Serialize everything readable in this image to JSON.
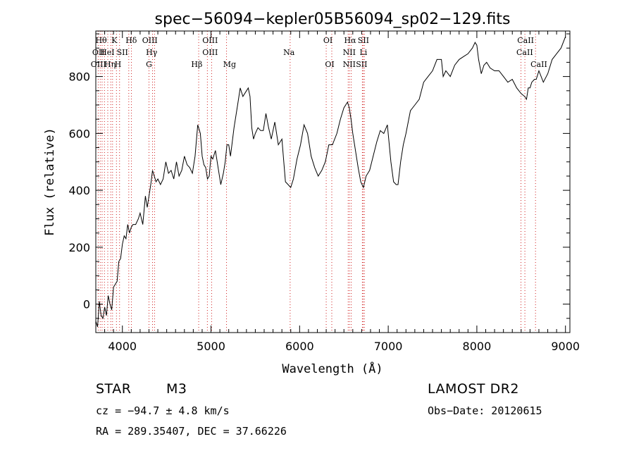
{
  "chart_data": {
    "type": "line",
    "title": "spec−56094−kepler05B56094_sp02−129.fits",
    "xlabel": "Wavelength (Å)",
    "ylabel": "Flux (relative)",
    "xlim": [
      3700,
      9050
    ],
    "ylim": [
      -100,
      960
    ],
    "xticks": [
      4000,
      5000,
      6000,
      7000,
      8000,
      9000
    ],
    "yticks": [
      0,
      200,
      400,
      600,
      800
    ],
    "series": [
      {
        "x": [
          3700,
          3720,
          3740,
          3760,
          3780,
          3800,
          3820,
          3840,
          3860,
          3880,
          3900,
          3920,
          3940,
          3960,
          3980,
          4000,
          4020,
          4040,
          4060,
          4080,
          4100,
          4120,
          4150,
          4180,
          4200,
          4230,
          4260,
          4280,
          4300,
          4320,
          4340,
          4360,
          4380,
          4400,
          4430,
          4460,
          4490,
          4520,
          4550,
          4580,
          4610,
          4640,
          4670,
          4700,
          4730,
          4760,
          4790,
          4820,
          4850,
          4880,
          4900,
          4920,
          4940,
          4960,
          4980,
          5000,
          5020,
          5050,
          5080,
          5110,
          5140,
          5160,
          5180,
          5200,
          5220,
          5260,
          5300,
          5330,
          5360,
          5400,
          5420,
          5440,
          5460,
          5480,
          5500,
          5530,
          5560,
          5590,
          5620,
          5650,
          5680,
          5720,
          5760,
          5800,
          5840,
          5870,
          5900,
          5930,
          5970,
          6010,
          6050,
          6090,
          6130,
          6170,
          6210,
          6250,
          6290,
          6330,
          6370,
          6420,
          6460,
          6500,
          6540,
          6560,
          6580,
          6600,
          6630,
          6660,
          6690,
          6720,
          6750,
          6790,
          6830,
          6870,
          6910,
          6950,
          6990,
          7030,
          7060,
          7090,
          7110,
          7140,
          7170,
          7200,
          7250,
          7300,
          7350,
          7400,
          7450,
          7500,
          7550,
          7600,
          7620,
          7650,
          7700,
          7750,
          7800,
          7850,
          7900,
          7950,
          7980,
          8000,
          8020,
          8050,
          8080,
          8110,
          8150,
          8200,
          8250,
          8300,
          8350,
          8400,
          8450,
          8500,
          8540,
          8560,
          8580,
          8600,
          8620,
          8650,
          8670,
          8700,
          8750,
          8800,
          8850,
          8900,
          8950,
          9000
        ],
        "values": [
          -60,
          -80,
          10,
          -40,
          -50,
          -10,
          -40,
          30,
          0,
          -20,
          60,
          70,
          80,
          150,
          160,
          210,
          240,
          230,
          280,
          250,
          270,
          280,
          280,
          300,
          320,
          280,
          380,
          340,
          380,
          420,
          470,
          450,
          430,
          440,
          420,
          440,
          500,
          460,
          470,
          440,
          500,
          450,
          470,
          520,
          490,
          480,
          460,
          520,
          630,
          600,
          520,
          490,
          480,
          440,
          450,
          520,
          510,
          540,
          480,
          420,
          460,
          500,
          560,
          560,
          520,
          620,
          700,
          760,
          730,
          750,
          760,
          730,
          620,
          580,
          600,
          620,
          610,
          610,
          670,
          620,
          580,
          640,
          560,
          580,
          430,
          420,
          410,
          440,
          510,
          560,
          630,
          600,
          520,
          480,
          450,
          470,
          500,
          560,
          560,
          600,
          650,
          690,
          710,
          690,
          650,
          600,
          540,
          480,
          430,
          410,
          450,
          470,
          520,
          570,
          610,
          600,
          630,
          500,
          430,
          420,
          420,
          500,
          560,
          600,
          680,
          700,
          720,
          780,
          800,
          820,
          860,
          860,
          800,
          820,
          800,
          840,
          860,
          870,
          880,
          900,
          920,
          910,
          860,
          810,
          840,
          850,
          830,
          820,
          820,
          800,
          780,
          790,
          760,
          740,
          730,
          720,
          760,
          760,
          780,
          790,
          790,
          820,
          780,
          810,
          860,
          880,
          900,
          940
        ]
      }
    ],
    "line_labels_row1": [
      "Hθ",
      "K",
      "Hδ",
      "OIII",
      "OIII",
      "OI",
      "Hα",
      "SII",
      "CaII"
    ],
    "line_labels_row2": [
      "OII",
      "HeI",
      "SII",
      "Hγ",
      "OIII",
      "Na",
      "NII",
      "Li",
      "CaII"
    ],
    "line_labels_row3": [
      "OIII",
      "Hη",
      "H",
      "G",
      "Hβ",
      "Mg",
      "OI",
      "NII",
      "SII",
      "CaII"
    ],
    "line_positions": [
      3727,
      3750,
      3771,
      3798,
      3835,
      3869,
      3889,
      3933,
      3968,
      4072,
      4102,
      4300,
      4340,
      4363,
      4861,
      4959,
      5007,
      5175,
      5893,
      6300,
      6363,
      6548,
      6563,
      6583,
      6708,
      6717,
      6731,
      8498,
      8542,
      8662
    ]
  },
  "info": {
    "object_type": "STAR",
    "subclass": "M3",
    "survey": "LAMOST DR2",
    "velocity": "cz = −94.7 ± 4.8 km/s",
    "obs_date": "Obs−Date: 20120615",
    "coords": "RA = 289.35407, DEC =  37.66226"
  }
}
